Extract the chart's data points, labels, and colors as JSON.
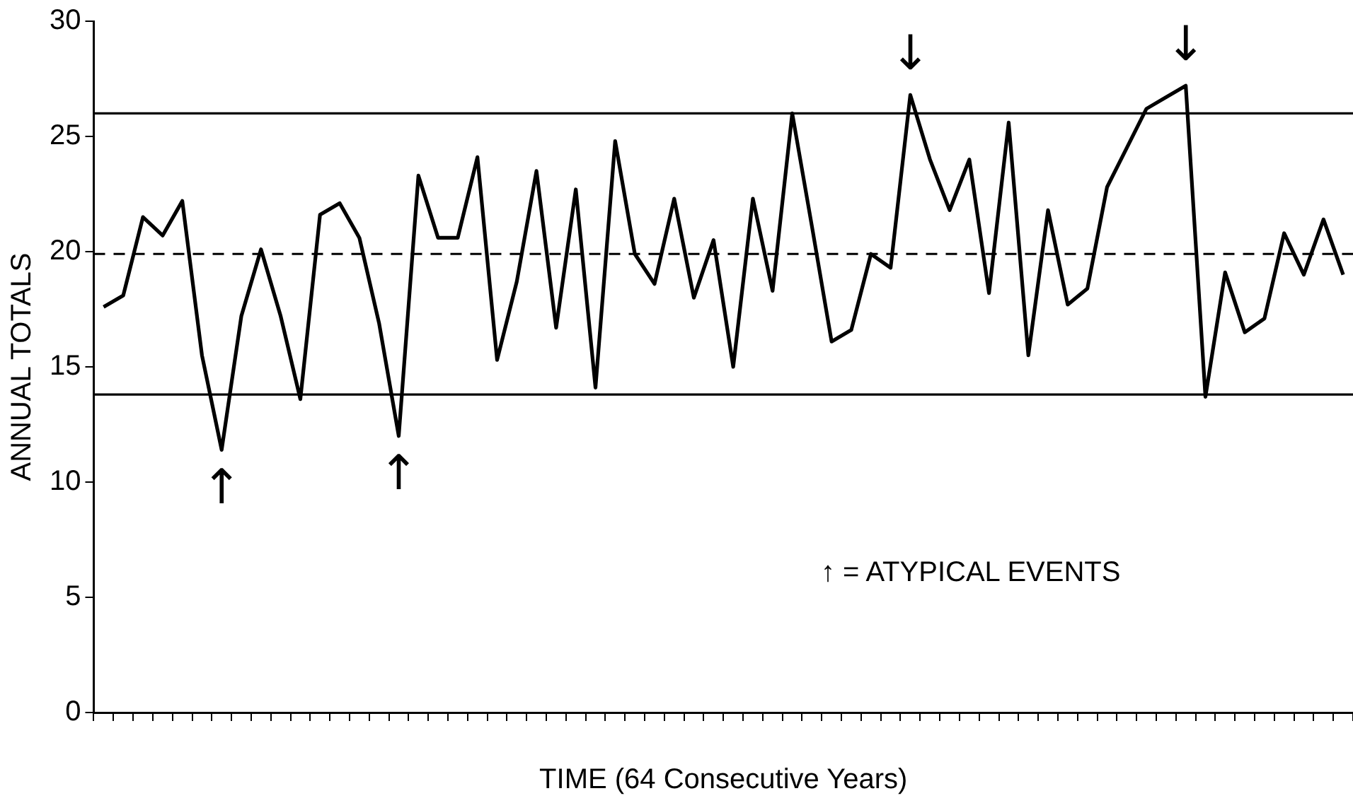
{
  "chart_data": {
    "type": "line",
    "xlabel": "TIME (64 Consecutive Years)",
    "ylabel": "ANNUAL TOTALS",
    "categories": [
      null,
      null,
      null,
      null,
      null,
      null,
      null,
      null,
      null,
      null,
      null,
      null,
      null,
      null,
      null,
      null,
      null,
      null,
      null,
      null,
      null,
      null,
      null,
      null,
      null,
      null,
      null,
      null,
      null,
      null,
      null,
      null,
      null,
      null,
      null,
      null,
      null,
      null,
      null,
      null,
      null,
      null,
      null,
      null,
      null,
      null,
      null,
      null,
      null,
      null,
      null,
      null,
      null,
      null,
      null,
      null,
      null,
      null,
      null,
      null,
      null,
      null,
      null,
      null
    ],
    "series": [
      {
        "color": "#000000",
        "values": [
          17.6,
          18.1,
          21.5,
          20.7,
          22.2,
          15.5,
          11.4,
          17.2,
          20.1,
          17.2,
          13.6,
          21.6,
          22.1,
          20.6,
          16.9,
          12.0,
          23.3,
          20.6,
          20.6,
          24.1,
          15.3,
          18.7,
          23.5,
          16.7,
          22.7,
          14.1,
          24.8,
          19.9,
          18.6,
          22.3,
          18.0,
          20.5,
          15.0,
          22.3,
          18.3,
          26.0,
          21.1,
          16.1,
          16.6,
          19.9,
          19.3,
          26.8,
          24.0,
          21.8,
          24.0,
          18.2,
          25.6,
          15.5,
          21.8,
          17.7,
          18.4,
          22.8,
          24.5,
          26.2,
          26.7,
          27.2,
          13.7,
          19.1,
          16.5,
          17.1,
          20.8,
          19.0,
          21.4,
          19.0
        ]
      }
    ],
    "ylim": [
      0,
      30
    ],
    "yticks": [
      0,
      5,
      10,
      15,
      20,
      25,
      30
    ],
    "ref_lines": [
      {
        "axis": "y",
        "value": 26.0,
        "color": "#000000",
        "line_style": "solid"
      },
      {
        "axis": "y",
        "value": 19.9,
        "color": "#000000",
        "line_style": "dashed"
      },
      {
        "axis": "y",
        "value": 13.8,
        "color": "#000000",
        "line_style": "solid"
      }
    ],
    "annotations": [
      {
        "text": "↑",
        "y": 11.4
      },
      {
        "text": "↑",
        "y": 12.0
      },
      {
        "text": "↓",
        "y": 26.8
      },
      {
        "text": "↓",
        "y": 27.2
      },
      "↑ = ATYPICAL EVENTS"
    ],
    "grid": false,
    "legend": false,
    "marker": "none",
    "line_style": "solid"
  }
}
